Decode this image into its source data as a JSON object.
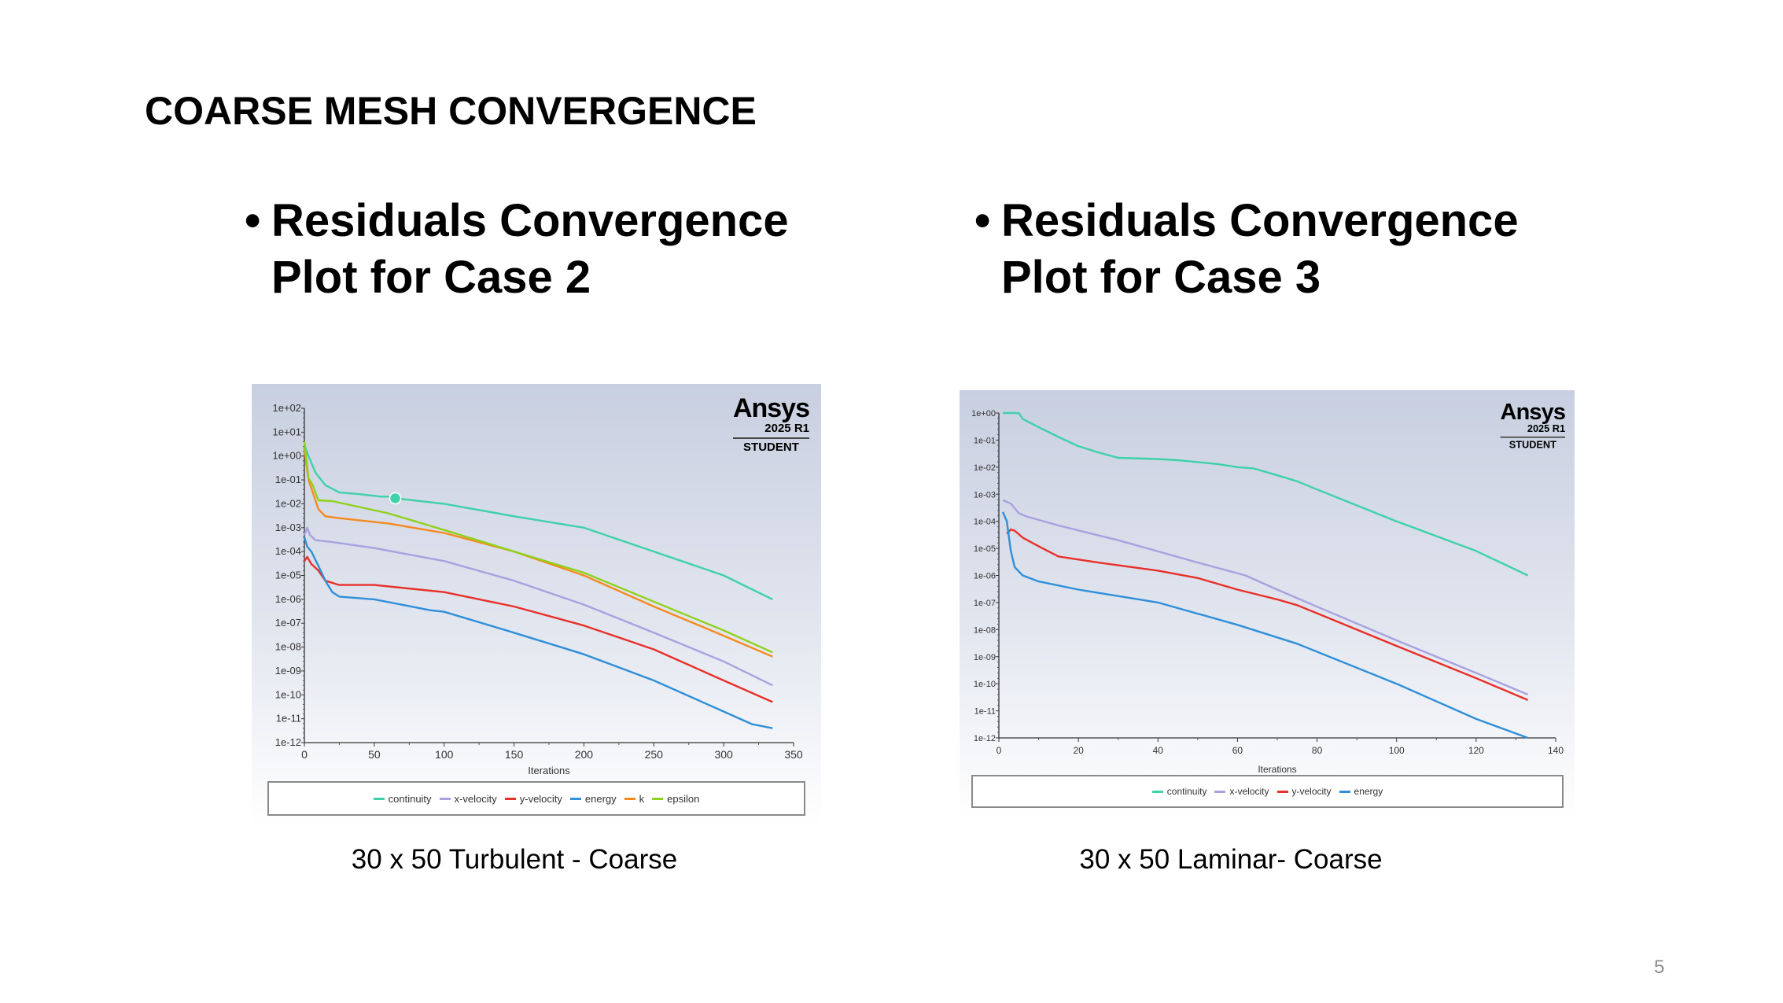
{
  "slide": {
    "title": "COARSE MESH CONVERGENCE",
    "page_number": "5",
    "bullets": [
      {
        "bullet": "•",
        "line1": "Residuals Convergence",
        "line2": "Plot for Case 2"
      },
      {
        "bullet": "•",
        "line1": "Residuals Convergence",
        "line2": "Plot for Case 3"
      }
    ],
    "captions": [
      "30 x 50 Turbulent - Coarse",
      "30 x 50 Laminar- Coarse"
    ]
  },
  "logo": {
    "brand": "Ansys",
    "release": "2025 R1",
    "edition": "STUDENT"
  },
  "chart_data": [
    {
      "type": "line",
      "yscale": "log",
      "xlabel": "Iterations",
      "ylabel": "",
      "xlim": [
        0,
        350
      ],
      "ylim": [
        1e-12,
        100
      ],
      "xticks": [
        "0",
        "50",
        "100",
        "150",
        "200",
        "250",
        "300",
        "350"
      ],
      "yticks": [
        "1e+02",
        "1e+01",
        "1e+00",
        "1e-01",
        "1e-02",
        "1e-03",
        "1e-04",
        "1e-05",
        "1e-06",
        "1e-07",
        "1e-08",
        "1e-09",
        "1e-10",
        "1e-11",
        "1e-12"
      ],
      "legend": "bottom",
      "grid": false,
      "marker": {
        "series": "continuity",
        "x": 65,
        "y": 0.017
      },
      "series": [
        {
          "name": "continuity",
          "color": "#3fd1aa",
          "x": [
            0,
            3,
            8,
            15,
            25,
            40,
            55,
            60,
            65,
            100,
            150,
            200,
            250,
            300,
            335
          ],
          "y": [
            3,
            1,
            0.2,
            0.06,
            0.03,
            0.025,
            0.02,
            0.02,
            0.017,
            0.01,
            0.003,
            0.001,
            0.0001,
            1e-05,
            1e-06
          ]
        },
        {
          "name": "x-velocity",
          "color": "#a7a2df",
          "x": [
            0,
            2,
            4,
            8,
            20,
            50,
            100,
            150,
            200,
            250,
            300,
            335
          ],
          "y": [
            0.0005,
            0.001,
            0.0005,
            0.0003,
            0.00025,
            0.00014,
            4e-05,
            6e-06,
            6e-07,
            4e-08,
            2.5e-09,
            2.5e-10
          ]
        },
        {
          "name": "y-velocity",
          "color": "#e8302a",
          "x": [
            0,
            2,
            5,
            10,
            15,
            25,
            50,
            100,
            150,
            200,
            250,
            300,
            335
          ],
          "y": [
            4e-05,
            6e-05,
            3e-05,
            1.6e-05,
            6e-06,
            4e-06,
            4e-06,
            2e-06,
            5e-07,
            8e-08,
            8e-09,
            4e-10,
            5e-11
          ]
        },
        {
          "name": "energy",
          "color": "#2f8fd8",
          "x": [
            0,
            2,
            5,
            10,
            15,
            20,
            25,
            50,
            90,
            100,
            150,
            200,
            250,
            300,
            320,
            335
          ],
          "y": [
            0.0004,
            0.00016,
            0.0001,
            2.5e-05,
            6e-06,
            2e-06,
            1.3e-06,
            1e-06,
            3.5e-07,
            3e-07,
            4e-08,
            5e-09,
            4e-10,
            2e-11,
            6e-12,
            4e-12
          ]
        },
        {
          "name": "k",
          "color": "#f58a1f",
          "x": [
            0,
            3,
            6,
            10,
            15,
            25,
            60,
            100,
            150,
            200,
            250,
            300,
            335
          ],
          "y": [
            2,
            0.1,
            0.03,
            0.006,
            0.003,
            0.0025,
            0.0015,
            0.0006,
            0.0001,
            1e-05,
            5e-07,
            3e-08,
            4e-09
          ]
        },
        {
          "name": "epsilon",
          "color": "#8fd21c",
          "x": [
            0,
            3,
            6,
            10,
            20,
            60,
            100,
            150,
            200,
            250,
            300,
            335
          ],
          "y": [
            4,
            0.12,
            0.06,
            0.014,
            0.013,
            0.004,
            0.0008,
            0.0001,
            1.3e-05,
            8e-07,
            5e-08,
            6e-09
          ]
        }
      ]
    },
    {
      "type": "line",
      "yscale": "log",
      "xlabel": "Iterations",
      "ylabel": "",
      "xlim": [
        0,
        140
      ],
      "ylim": [
        1e-12,
        1
      ],
      "xticks": [
        "0",
        "20",
        "40",
        "60",
        "80",
        "100",
        "120",
        "140"
      ],
      "yticks": [
        "1e+00",
        "1e-01",
        "1e-02",
        "1e-03",
        "1e-04",
        "1e-05",
        "1e-06",
        "1e-07",
        "1e-08",
        "1e-09",
        "1e-10",
        "1e-11",
        "1e-12"
      ],
      "legend": "bottom",
      "grid": false,
      "series": [
        {
          "name": "continuity",
          "color": "#3fd1aa",
          "x": [
            1,
            5,
            6,
            10,
            15,
            20,
            25,
            30,
            40,
            45,
            55,
            60,
            64,
            70,
            75,
            80,
            100,
            120,
            133
          ],
          "y": [
            1,
            1,
            0.6,
            0.3,
            0.13,
            0.06,
            0.035,
            0.022,
            0.02,
            0.018,
            0.013,
            0.01,
            0.009,
            0.005,
            0.003,
            0.0015,
            0.0001,
            8e-06,
            1e-06
          ]
        },
        {
          "name": "x-velocity",
          "color": "#a7a2df",
          "x": [
            1,
            3,
            5,
            7,
            15,
            30,
            50,
            62,
            70,
            80,
            100,
            120,
            133
          ],
          "y": [
            0.0006,
            0.00045,
            0.0002,
            0.00015,
            7e-05,
            2e-05,
            3e-06,
            1e-06,
            3e-07,
            7e-08,
            4e-09,
            2.5e-10,
            4e-11
          ]
        },
        {
          "name": "y-velocity",
          "color": "#e8302a",
          "x": [
            2,
            3,
            4,
            6,
            10,
            15,
            25,
            40,
            50,
            60,
            70,
            75,
            80,
            100,
            120,
            133
          ],
          "y": [
            3.5e-05,
            5e-05,
            4.5e-05,
            2.5e-05,
            1.2e-05,
            5e-06,
            3e-06,
            1.5e-06,
            8e-07,
            3e-07,
            1.3e-07,
            8e-08,
            4e-08,
            2.5e-09,
            1.6e-10,
            2.5e-11
          ]
        },
        {
          "name": "energy",
          "color": "#2f8fd8",
          "x": [
            1,
            2,
            3,
            4,
            6,
            10,
            20,
            40,
            60,
            75,
            100,
            120,
            133
          ],
          "y": [
            0.00022,
            0.0001,
            8e-06,
            2e-06,
            1e-06,
            6e-07,
            3e-07,
            1e-07,
            1.5e-08,
            3e-09,
            1e-10,
            5e-12,
            1e-12
          ]
        }
      ]
    }
  ]
}
